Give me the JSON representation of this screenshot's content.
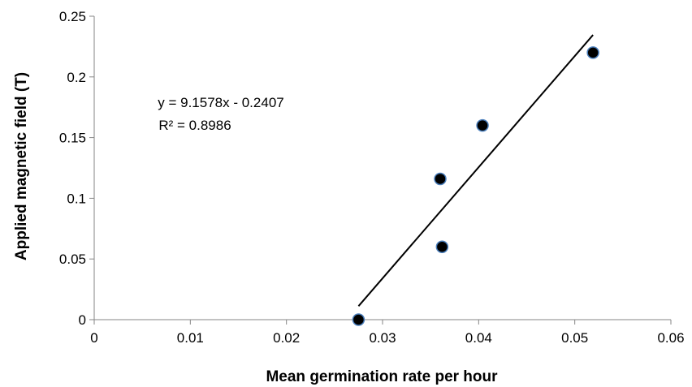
{
  "chart_data": {
    "type": "scatter",
    "xlabel": "Mean germination rate per hour",
    "ylabel": "Applied magnetic field (T)",
    "xlim": [
      0,
      0.06
    ],
    "ylim": [
      0,
      0.25
    ],
    "x_ticks": [
      "0",
      "0.01",
      "0.02",
      "0.03",
      "0.04",
      "0.05",
      "0.06"
    ],
    "y_ticks": [
      "0",
      "0.05",
      "0.1",
      "0.15",
      "0.2",
      "0.25"
    ],
    "grid": false,
    "points": [
      {
        "x": 0.0275,
        "y": 0.0
      },
      {
        "x": 0.0362,
        "y": 0.06
      },
      {
        "x": 0.036,
        "y": 0.116
      },
      {
        "x": 0.0404,
        "y": 0.16
      },
      {
        "x": 0.0519,
        "y": 0.22
      }
    ],
    "trendline": {
      "slope": 9.1578,
      "intercept": -0.2407,
      "x_range": [
        0.0275,
        0.0519
      ]
    },
    "annotations": {
      "equation": "y = 9.1578x - 0.2407",
      "r_squared": "R² = 0.8986"
    },
    "colors": {
      "marker_fill": "#000000",
      "marker_edge": "#4a7ebb",
      "line": "#000000"
    }
  }
}
